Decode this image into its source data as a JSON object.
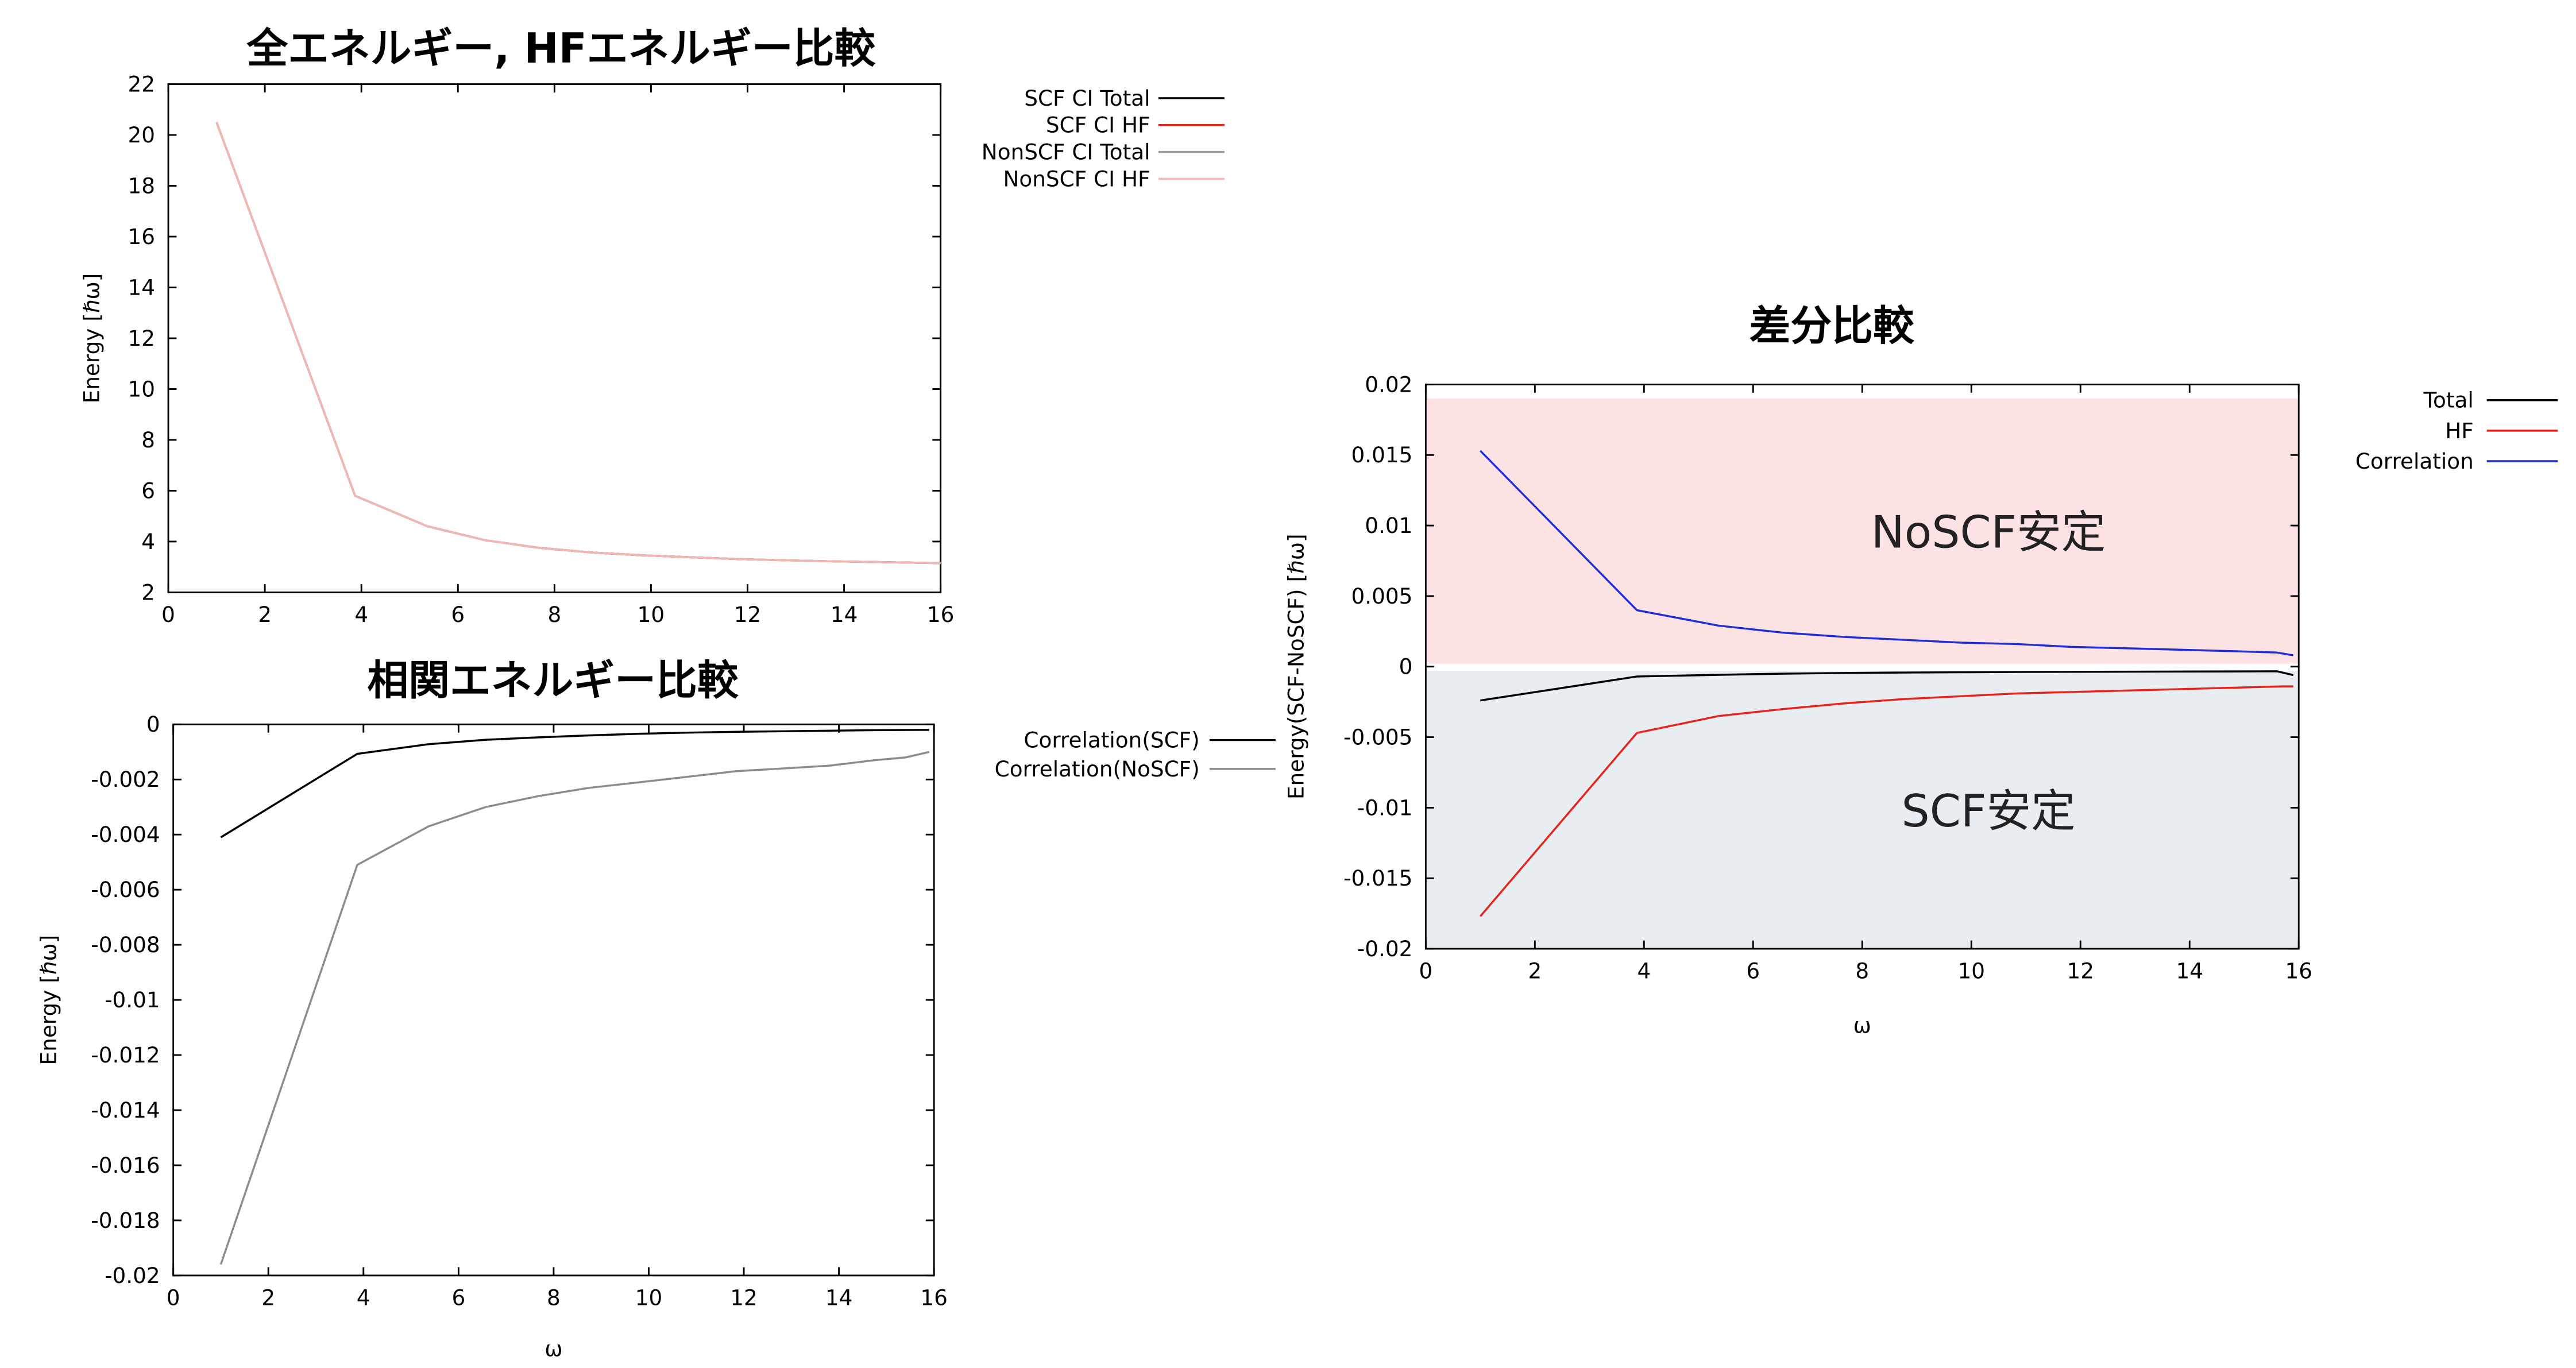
{
  "chart_data": [
    {
      "type": "line",
      "title": "全エネルギー, HFエネルギー比較",
      "xlabel": "",
      "ylabel": "Energy [ℏω]",
      "xlim": [
        0,
        16
      ],
      "ylim": [
        2,
        22
      ],
      "x_ticks": [
        0,
        2,
        4,
        6,
        8,
        10,
        12,
        14,
        16
      ],
      "y_ticks": [
        2,
        4,
        6,
        8,
        10,
        12,
        14,
        16,
        18,
        20,
        22
      ],
      "legend_position": "outside-right-top",
      "x": [
        1,
        3.87,
        5.37,
        6.57,
        7.69,
        8.76,
        9.81,
        10.83,
        11.83,
        12.82,
        13.79,
        14.75,
        15.71,
        16
      ],
      "series": [
        {
          "name": "SCF CI Total",
          "color": "#000000",
          "values": [
            20.5,
            5.8,
            4.6,
            4.05,
            3.75,
            3.57,
            3.46,
            3.38,
            3.31,
            3.26,
            3.22,
            3.19,
            3.16,
            3.15
          ]
        },
        {
          "name": "SCF CI HF",
          "color": "#e8231c",
          "values": [
            20.5,
            5.8,
            4.6,
            4.05,
            3.75,
            3.57,
            3.46,
            3.38,
            3.31,
            3.26,
            3.22,
            3.19,
            3.16,
            3.15
          ]
        },
        {
          "name": "NonSCF CI Total",
          "color": "#9b9b9b",
          "values": [
            20.5,
            5.8,
            4.6,
            4.05,
            3.75,
            3.57,
            3.46,
            3.38,
            3.31,
            3.26,
            3.22,
            3.19,
            3.16,
            3.15
          ]
        },
        {
          "name": "NonSCF CI HF",
          "color": "#f2b8b0",
          "values": [
            20.5,
            5.8,
            4.6,
            4.05,
            3.75,
            3.57,
            3.46,
            3.38,
            3.31,
            3.26,
            3.22,
            3.19,
            3.16,
            3.15
          ]
        }
      ]
    },
    {
      "type": "line",
      "title": "相関エネルギー比較",
      "xlabel": "ω",
      "ylabel": "Energy [ℏω]",
      "xlim": [
        0,
        16
      ],
      "ylim": [
        -0.02,
        0
      ],
      "x_ticks": [
        0,
        2,
        4,
        6,
        8,
        10,
        12,
        14,
        16
      ],
      "y_ticks": [
        0,
        -0.002,
        -0.004,
        -0.006,
        -0.008,
        -0.01,
        -0.012,
        -0.014,
        -0.016,
        -0.018,
        -0.02
      ],
      "legend_position": "outside-right-top",
      "series": [
        {
          "name": "Correlation(SCF)",
          "color": "#000000",
          "x": [
            1,
            3.87,
            5.37,
            6.57,
            7.69,
            8.76,
            9.81,
            10.83,
            11.83,
            12.82,
            13.79,
            14.75,
            15.71,
            15.9
          ],
          "values": [
            -0.0041,
            -0.00107,
            -0.00072,
            -0.00056,
            -0.00047,
            -0.0004,
            -0.00034,
            -0.0003,
            -0.00027,
            -0.00025,
            -0.00023,
            -0.00021,
            -0.0002,
            -0.0002
          ]
        },
        {
          "name": "Correlation(NoSCF)",
          "color": "#8c8c8c",
          "x": [
            1,
            3.87,
            5.37,
            6.57,
            7.69,
            8.76,
            9.81,
            10.83,
            11.83,
            12.82,
            13.79,
            14.75,
            15.4,
            15.9
          ],
          "values": [
            -0.0196,
            -0.0051,
            -0.0037,
            -0.003,
            -0.0026,
            -0.0023,
            -0.0021,
            -0.0019,
            -0.0017,
            -0.0016,
            -0.0015,
            -0.0013,
            -0.0012,
            -0.001
          ]
        }
      ]
    },
    {
      "type": "line",
      "title": "差分比較",
      "xlabel": "ω",
      "ylabel": "Energy(SCF-NoSCF) [ℏω]",
      "xlim": [
        0,
        16
      ],
      "ylim": [
        -0.02,
        0.02
      ],
      "x_ticks": [
        0,
        2,
        4,
        6,
        8,
        10,
        12,
        14,
        16
      ],
      "y_ticks": [
        0.02,
        0.015,
        0.01,
        0.005,
        0,
        -0.005,
        -0.01,
        -0.015,
        -0.02
      ],
      "y_tick_labels": [
        "0.02",
        "0.015",
        "0.01",
        "0.005",
        "0",
        "-0.005",
        "-0.01",
        "-0.015",
        "-0.02"
      ],
      "legend_position": "outside-right-top",
      "regions": [
        {
          "label": "NoSCF安定",
          "color": "#fde2e3",
          "y_from": 0.0002,
          "y_to": 0.019
        },
        {
          "label": "SCF安定",
          "color": "#e7edf0",
          "y_from": -0.02,
          "y_to": -0.0003
        }
      ],
      "series": [
        {
          "name": "Total",
          "color": "#000000",
          "x": [
            1,
            3.87,
            5.37,
            6.57,
            7.69,
            8.76,
            9.81,
            10.83,
            11.83,
            12.82,
            13.79,
            14.75,
            15.6,
            15.9
          ],
          "values": [
            -0.0024,
            -0.0007,
            -0.00058,
            -0.0005,
            -0.00045,
            -0.00042,
            -0.0004,
            -0.00038,
            -0.00037,
            -0.00036,
            -0.00035,
            -0.00034,
            -0.00033,
            -0.0006
          ]
        },
        {
          "name": "HF",
          "color": "#e8231c",
          "x": [
            1,
            3.87,
            5.37,
            6.57,
            7.69,
            8.76,
            9.81,
            10.83,
            11.83,
            12.82,
            13.79,
            14.75,
            15.71,
            15.9
          ],
          "values": [
            -0.0177,
            -0.0047,
            -0.0035,
            -0.003,
            -0.0026,
            -0.0023,
            -0.0021,
            -0.0019,
            -0.0018,
            -0.0017,
            -0.0016,
            -0.0015,
            -0.0014,
            -0.0014
          ]
        },
        {
          "name": "Correlation",
          "color": "#1f2fd6",
          "x": [
            1,
            3.87,
            5.37,
            6.57,
            7.69,
            8.76,
            9.81,
            10.83,
            11.83,
            12.82,
            13.79,
            14.75,
            15.6,
            15.9
          ],
          "values": [
            0.0153,
            0.004,
            0.0029,
            0.0024,
            0.0021,
            0.0019,
            0.0017,
            0.0016,
            0.0014,
            0.0013,
            0.0012,
            0.0011,
            0.001,
            0.0008
          ]
        }
      ]
    }
  ]
}
